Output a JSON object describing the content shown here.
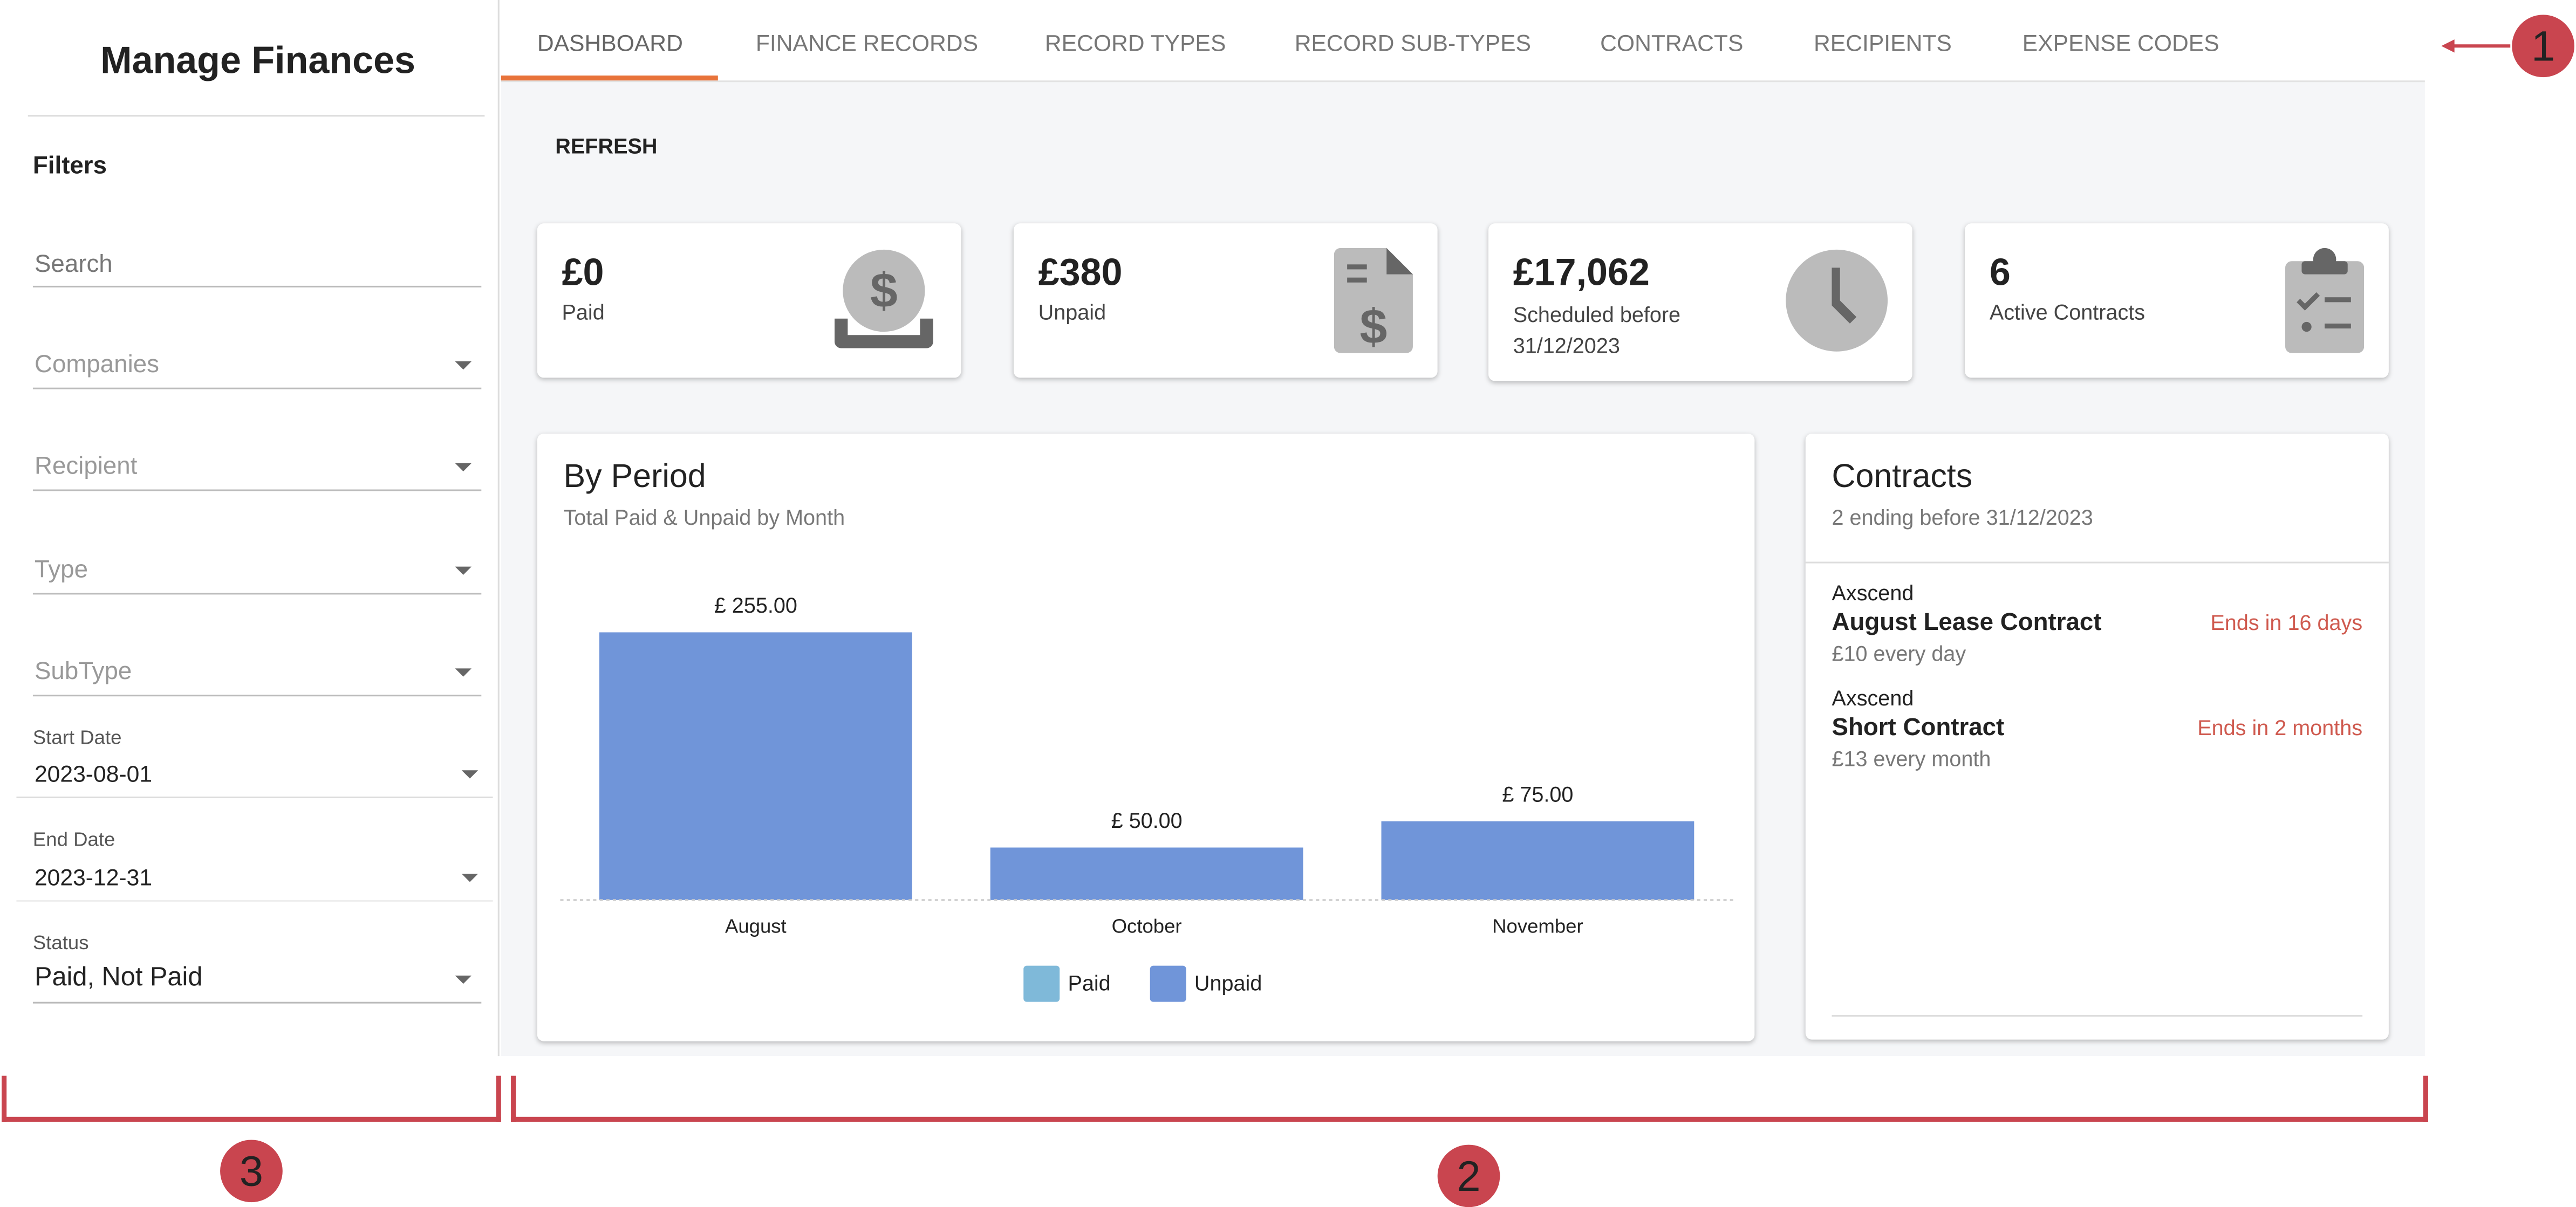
{
  "sidebar": {
    "title": "Manage Finances",
    "filters_label": "Filters",
    "search": "Search",
    "dropdowns": [
      "Companies",
      "Recipient",
      "Type",
      "SubType"
    ],
    "start_date": {
      "label": "Start Date",
      "value": "2023-08-01"
    },
    "end_date": {
      "label": "End Date",
      "value": "2023-12-31"
    },
    "status": {
      "label": "Status",
      "value": "Paid, Not Paid"
    }
  },
  "tabs": [
    "DASHBOARD",
    "FINANCE RECORDS",
    "RECORD TYPES",
    "RECORD SUB-TYPES",
    "CONTRACTS",
    "RECIPIENTS",
    "EXPENSE CODES"
  ],
  "refresh": "REFRESH",
  "cards": [
    {
      "value": "£0",
      "label": "Paid"
    },
    {
      "value": "£380",
      "label": "Unpaid"
    },
    {
      "value": "£17,062",
      "label": "Scheduled before 31/12/2023"
    },
    {
      "value": "6",
      "label": "Active Contracts"
    }
  ],
  "chart_data": {
    "type": "bar",
    "title": "By Period",
    "subtitle": "Total Paid & Unpaid by Month",
    "categories": [
      "August",
      "October",
      "November"
    ],
    "series": [
      {
        "name": "Paid",
        "color": "#7fb9d9",
        "values": [
          0,
          0,
          0
        ]
      },
      {
        "name": "Unpaid",
        "color": "#7095d9",
        "values": [
          255,
          50,
          75
        ],
        "value_labels": [
          "£ 255.00",
          "£ 50.00",
          "£ 75.00"
        ]
      }
    ]
  },
  "contracts": {
    "title": "Contracts",
    "subtitle": "2 ending before 31/12/2023",
    "items": [
      {
        "company": "Axscend",
        "name": "August Lease Contract",
        "ends": "Ends in 16 days",
        "cost": "£10 every day"
      },
      {
        "company": "Axscend",
        "name": "Short Contract",
        "ends": "Ends in 2 months",
        "cost": "£13 every month"
      }
    ]
  },
  "annotations": [
    "1",
    "2",
    "3"
  ]
}
